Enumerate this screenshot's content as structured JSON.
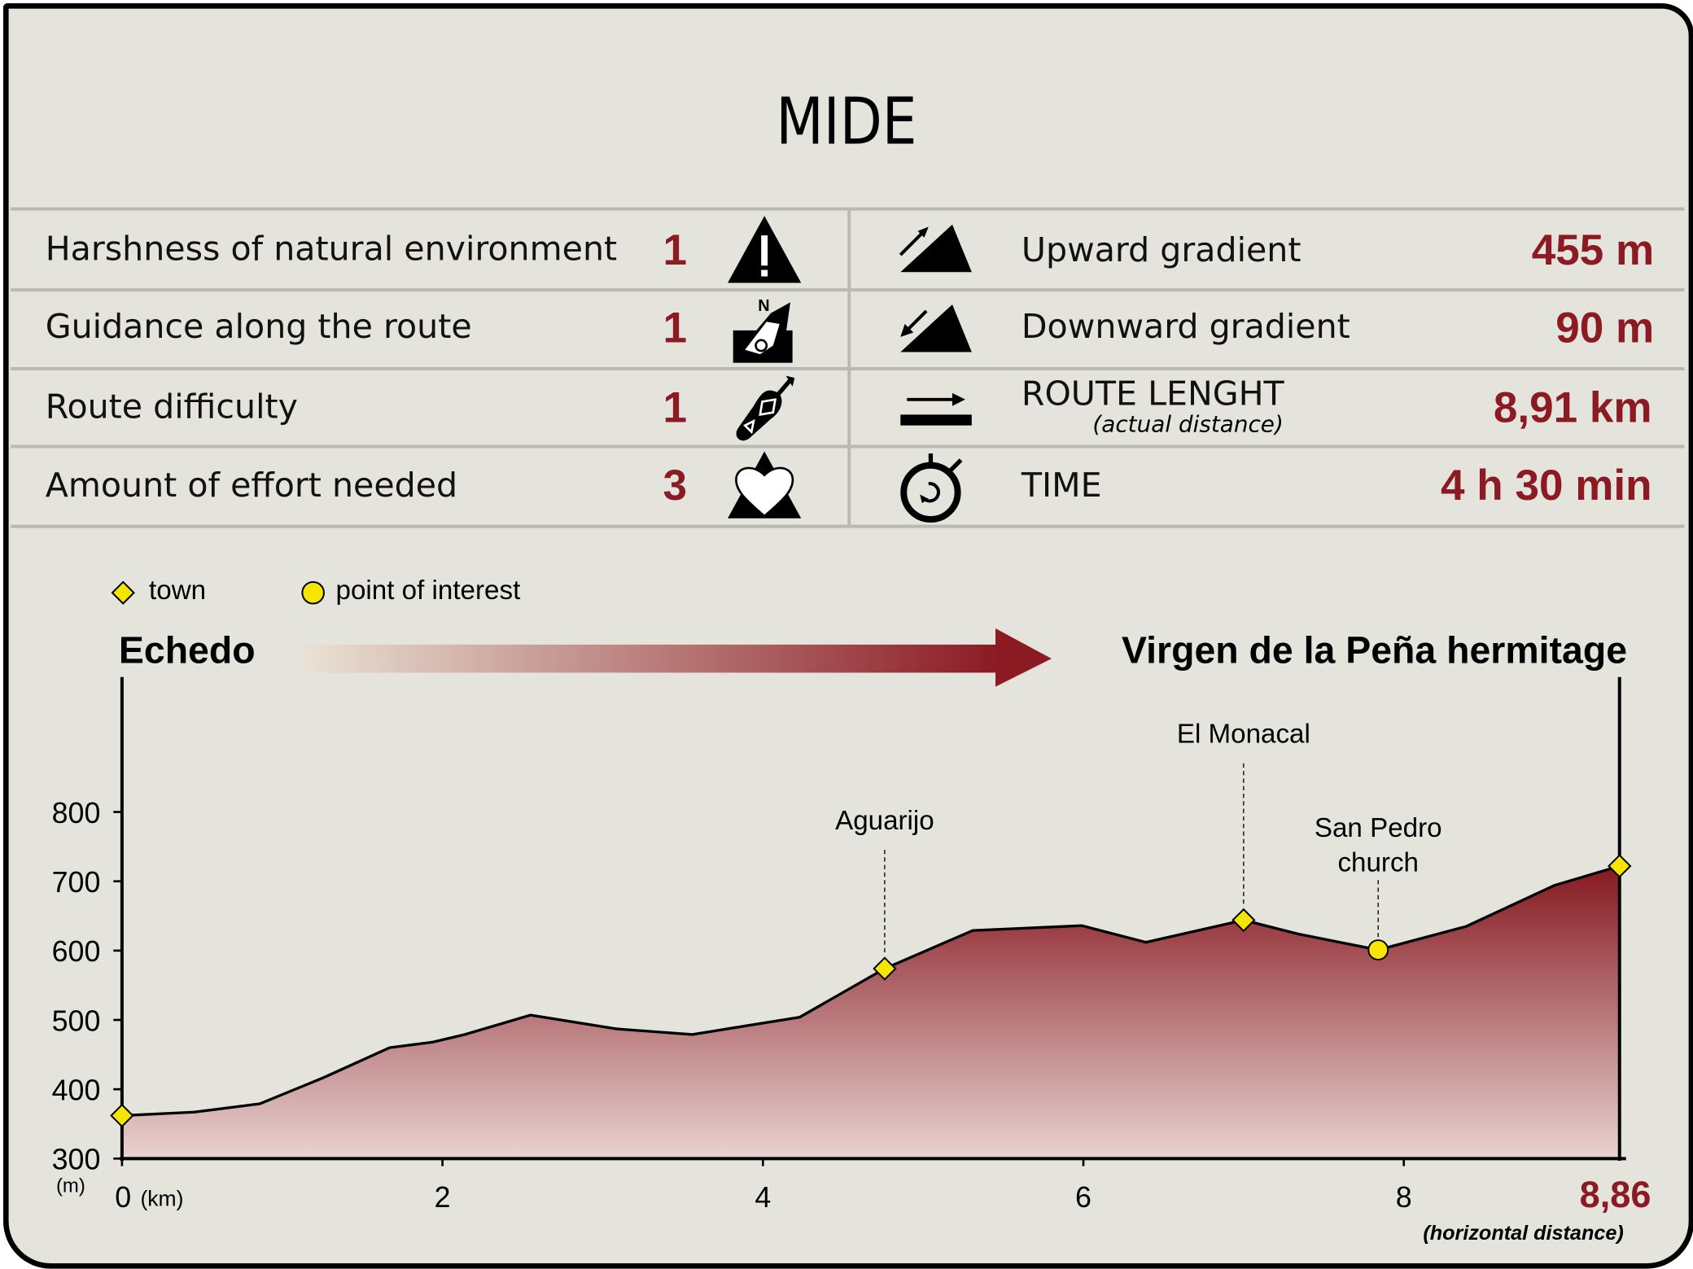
{
  "title": "MIDE",
  "mide": [
    {
      "label": "Harshness of natural environment",
      "value": "1",
      "icon": "warning-mountain-icon"
    },
    {
      "label": "Guidance along the route",
      "value": "1",
      "icon": "compass-sign-icon"
    },
    {
      "label": "Route difficulty",
      "value": "1",
      "icon": "footprint-icon"
    },
    {
      "label": "Amount of effort needed",
      "value": "3",
      "icon": "heart-mountain-icon"
    }
  ],
  "stats": [
    {
      "label": "Upward gradient",
      "value": "455 m",
      "icon": "upward-gradient-icon"
    },
    {
      "label": "Downward gradient",
      "value": "90 m",
      "icon": "downward-gradient-icon"
    },
    {
      "label": "ROUTE LENGHT",
      "sublabel": "(actual distance)",
      "value": "8,91 km",
      "icon": "route-length-icon"
    },
    {
      "label": "TIME",
      "value": "4 h 30 min",
      "icon": "stopwatch-icon"
    }
  ],
  "legend": {
    "town": "town",
    "poi": "point of interest"
  },
  "route": {
    "start": "Echedo",
    "end": "Virgen de la Peña hermitage"
  },
  "colors": {
    "accent": "#8b1a23",
    "background": "#e4e4dc",
    "marker": "#f5e500"
  },
  "chart_data": {
    "type": "area",
    "xlabel": "(km)",
    "ylabel": "(m)",
    "x_end_label": "8,86",
    "x_note": "(horizontal distance)",
    "xlim": [
      0,
      8.86
    ],
    "ylim": [
      300,
      800
    ],
    "xticks": [
      "0",
      "2",
      "4",
      "6",
      "8"
    ],
    "yticks": [
      "300",
      "400",
      "500",
      "600",
      "700",
      "800"
    ],
    "x": [
      0,
      0.45,
      0.86,
      1.26,
      1.67,
      1.94,
      2.14,
      2.55,
      3.09,
      3.56,
      4.23,
      4.76,
      5.31,
      5.99,
      6.39,
      7.0,
      7.34,
      7.84,
      8.25,
      8.6,
      8.86
    ],
    "y": [
      362,
      367,
      379,
      417,
      460,
      468,
      479,
      507,
      487,
      479,
      504,
      574,
      629,
      636,
      612,
      644,
      624,
      601,
      635,
      694,
      722
    ],
    "points": [
      {
        "name": "",
        "km": 0,
        "elev": 362,
        "type": "town"
      },
      {
        "name": "Aguarijo",
        "km": 4.76,
        "elev": 574,
        "type": "town"
      },
      {
        "name": "El Monacal",
        "km": 7.0,
        "elev": 644,
        "type": "town"
      },
      {
        "name": "San Pedro",
        "name2": "church",
        "km": 7.84,
        "elev": 601,
        "type": "poi"
      },
      {
        "name": "",
        "km": 8.86,
        "elev": 722,
        "type": "town"
      }
    ]
  }
}
